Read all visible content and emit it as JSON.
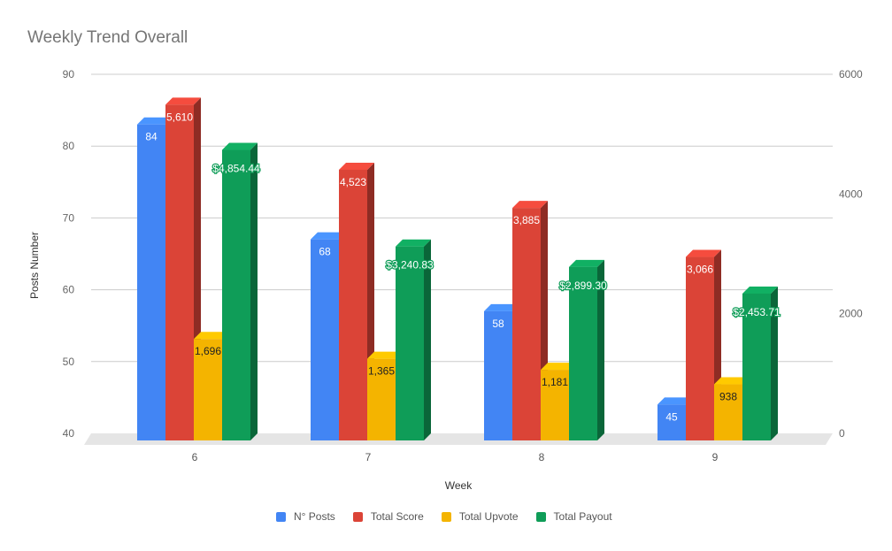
{
  "chart_data": {
    "type": "bar",
    "title": "Weekly Trend Overall",
    "xlabel": "Week",
    "ylabel": "Posts Number",
    "categories": [
      "6",
      "7",
      "8",
      "9"
    ],
    "ylim_left": [
      40,
      90
    ],
    "yticks_left": [
      "90",
      "80",
      "70",
      "60",
      "50",
      "40"
    ],
    "ylim_right": [
      0,
      6000
    ],
    "yticks_right": [
      "6000",
      "4000",
      "2000",
      "0"
    ],
    "legend_position": "bottom",
    "series": [
      {
        "name": "N° Posts",
        "axis": "left",
        "color": "#4285f4",
        "values": [
          84,
          68,
          58,
          45
        ],
        "labels": [
          "84",
          "68",
          "58",
          "45"
        ]
      },
      {
        "name": "Total Score",
        "axis": "right",
        "color": "#db4437",
        "values": [
          5610,
          4523,
          3885,
          3066
        ],
        "labels": [
          "5,610",
          "4,523",
          "3,885",
          "3,066"
        ]
      },
      {
        "name": "Total Upvote",
        "axis": "right",
        "color": "#f4b400",
        "values": [
          1696,
          1365,
          1181,
          938
        ],
        "labels": [
          "1,696",
          "1,365",
          "1,181",
          "938"
        ]
      },
      {
        "name": "Total Payout",
        "axis": "right",
        "color": "#0f9d58",
        "values": [
          4854.44,
          3240.83,
          2899.3,
          2453.71
        ],
        "labels": [
          "$4,854.44",
          "$3,240.83",
          "$2,899.30",
          "$2,453.71"
        ]
      }
    ]
  }
}
